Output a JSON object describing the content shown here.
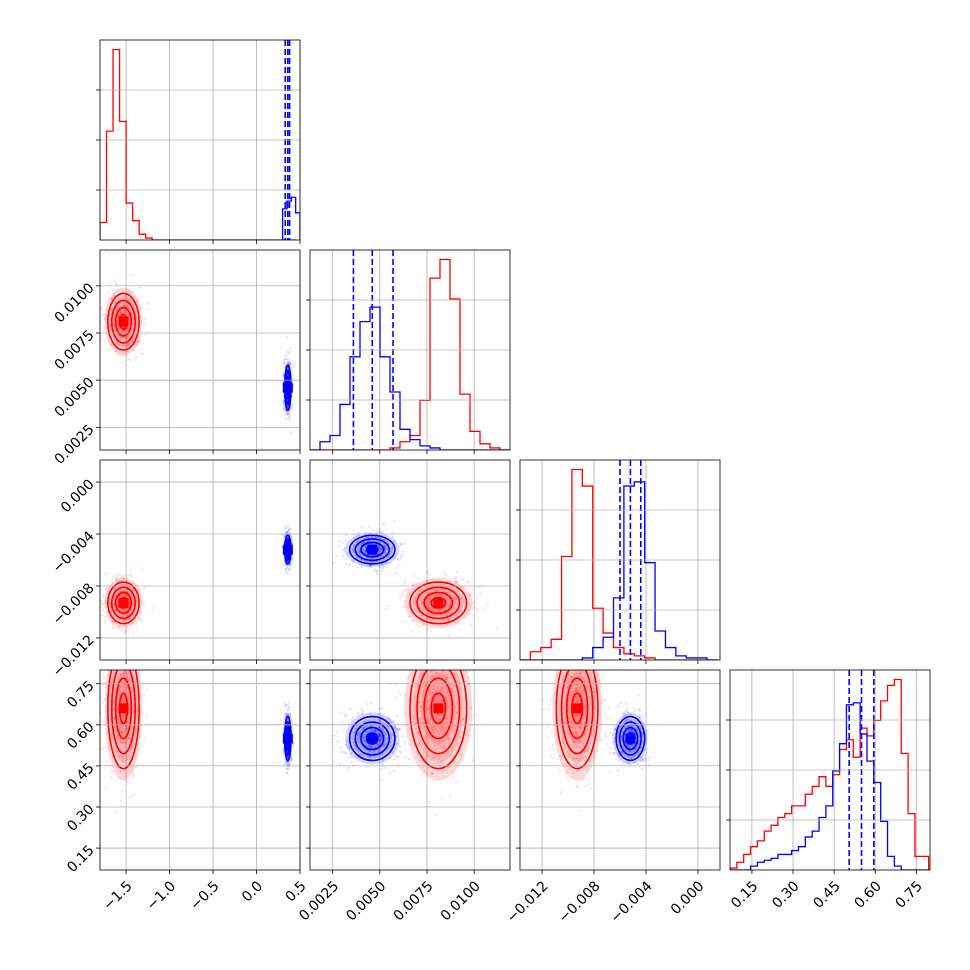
{
  "chart_data": {
    "type": "corner",
    "grid": true,
    "dims": [
      {
        "range": [
          -1.8,
          0.5
        ],
        "ticks": [
          -1.5,
          -1.0,
          -0.5,
          0.0,
          0.5
        ],
        "tick_labels": [
          "−1.5",
          "−1.0",
          "−0.5",
          "0.0",
          "0.5"
        ]
      },
      {
        "range": [
          0.0013,
          0.0119
        ],
        "ticks": [
          0.0025,
          0.005,
          0.0075,
          0.01
        ],
        "tick_labels": [
          "0.0025",
          "0.0050",
          "0.0075",
          "0.0100"
        ]
      },
      {
        "range": [
          -0.0137,
          0.0017
        ],
        "ticks": [
          -0.012,
          -0.008,
          -0.004,
          0.0
        ],
        "tick_labels": [
          "−0.012",
          "−0.008",
          "−0.004",
          "0.000"
        ]
      },
      {
        "range": [
          0.07,
          0.8
        ],
        "ticks": [
          0.15,
          0.3,
          0.45,
          0.6,
          0.75
        ],
        "tick_labels": [
          "0.15",
          "0.30",
          "0.45",
          "0.60",
          "0.75"
        ]
      }
    ],
    "series": [
      {
        "color": "#ff0000",
        "mean": [
          -1.53,
          0.0081,
          -0.0093,
          0.66
        ],
        "std": [
          0.09,
          0.00075,
          0.0008,
          0.11
        ],
        "hist": [
          {
            "bins": [
              -1.8,
              -1.725,
              -1.65,
              -1.575,
              -1.5,
              -1.425,
              -1.35,
              -1.275,
              -1.2,
              -1.125,
              -1.05,
              -0.975,
              -0.9,
              -0.825,
              -0.75,
              -0.675,
              -0.6,
              -0.525,
              -0.45,
              -0.375,
              -0.3,
              -0.225,
              -0.15,
              -0.075,
              0.0,
              0.075,
              0.15,
              0.225,
              0.3,
              0.375,
              0.45
            ],
            "counts": [
              0.09,
              0.56,
              0.98,
              0.61,
              0.19,
              0.1,
              0.03,
              0.01,
              0,
              0,
              0,
              0,
              0,
              0,
              0,
              0,
              0,
              0,
              0,
              0,
              0,
              0,
              0,
              0,
              0,
              0,
              0,
              0,
              0,
              0
            ]
          },
          {
            "bins": [
              0.0013,
              0.00183,
              0.00236,
              0.00289,
              0.00342,
              0.00395,
              0.00448,
              0.00501,
              0.00554,
              0.00607,
              0.0066,
              0.00713,
              0.00766,
              0.00819,
              0.00872,
              0.00925,
              0.00978,
              0.01031,
              0.01084,
              0.01137,
              0.0119
            ],
            "counts": [
              0,
              0,
              0,
              0,
              0,
              0,
              0,
              0,
              0.01,
              0.04,
              0.07,
              0.24,
              0.83,
              0.92,
              0.73,
              0.27,
              0.09,
              0.03,
              0.01,
              0
            ]
          },
          {
            "bins": [
              -0.0137,
              -0.0129,
              -0.0121,
              -0.0113,
              -0.0105,
              -0.0097,
              -0.0089,
              -0.0081,
              -0.0073,
              -0.0065,
              -0.0057,
              -0.0049,
              -0.0041,
              -0.0033,
              -0.0025,
              -0.0017,
              -0.0009,
              -0.0001,
              0.0007,
              0.0015
            ],
            "counts": [
              0,
              0.04,
              0.06,
              0.1,
              0.5,
              0.92,
              0.84,
              0.25,
              0.13,
              0.06,
              0.03,
              0.02,
              0.01,
              0,
              0,
              0,
              0,
              0,
              0
            ]
          },
          {
            "bins": [
              0.07,
              0.095,
              0.12,
              0.145,
              0.17,
              0.195,
              0.22,
              0.245,
              0.27,
              0.295,
              0.32,
              0.345,
              0.37,
              0.395,
              0.42,
              0.445,
              0.47,
              0.495,
              0.52,
              0.545,
              0.57,
              0.595,
              0.62,
              0.645,
              0.67,
              0.695,
              0.72,
              0.745,
              0.77,
              0.795
            ],
            "counts": [
              0.01,
              0.04,
              0.08,
              0.12,
              0.15,
              0.2,
              0.23,
              0.27,
              0.29,
              0.33,
              0.33,
              0.39,
              0.43,
              0.48,
              0.43,
              0.49,
              0.62,
              0.67,
              0.58,
              0.73,
              0.69,
              0.77,
              0.87,
              0.95,
              0.98,
              0.6,
              0.29,
              0.07,
              0.07
            ]
          }
        ]
      },
      {
        "color": "#0000ff",
        "mean": [
          0.36,
          0.0046,
          -0.0052,
          0.55
        ],
        "std": [
          0.018,
          0.0006,
          0.00055,
          0.04
        ],
        "hist": [
          {
            "bins": [
              0.3,
              0.35,
              0.4,
              0.45,
              0.5
            ],
            "counts": [
              0.16,
              0.2,
              0.22,
              0.14
            ]
          },
          {
            "bins": [
              0.0013,
              0.00183,
              0.00236,
              0.00289,
              0.00342,
              0.00395,
              0.00448,
              0.00501,
              0.00554,
              0.00607,
              0.0066,
              0.00713,
              0.00766,
              0.00819,
              0.00872,
              0.00925,
              0.00978,
              0.01031,
              0.01084,
              0.01137,
              0.0119
            ],
            "counts": [
              0,
              0.04,
              0.07,
              0.22,
              0.45,
              0.62,
              0.69,
              0.45,
              0.28,
              0.1,
              0.05,
              0.02,
              0.01,
              0,
              0,
              0,
              0,
              0,
              0,
              0
            ]
          },
          {
            "bins": [
              -0.0137,
              -0.0129,
              -0.0121,
              -0.0113,
              -0.0105,
              -0.0097,
              -0.0089,
              -0.0081,
              -0.0073,
              -0.0065,
              -0.0057,
              -0.0049,
              -0.0041,
              -0.0033,
              -0.0025,
              -0.0017,
              -0.0009,
              -0.0001,
              0.0007,
              0.0015
            ],
            "counts": [
              0,
              0,
              0,
              0,
              0,
              0,
              0.01,
              0.06,
              0.11,
              0.3,
              0.84,
              0.86,
              0.47,
              0.14,
              0.06,
              0.02,
              0.01,
              0.01,
              0
            ]
          },
          {
            "bins": [
              0.07,
              0.095,
              0.12,
              0.145,
              0.17,
              0.195,
              0.22,
              0.245,
              0.27,
              0.295,
              0.32,
              0.345,
              0.37,
              0.395,
              0.42,
              0.445,
              0.47,
              0.495,
              0.52,
              0.545,
              0.57,
              0.595,
              0.62,
              0.645,
              0.67,
              0.695,
              0.72,
              0.745,
              0.77,
              0.795
            ],
            "counts": [
              0,
              0,
              0,
              0.02,
              0.04,
              0.05,
              0.06,
              0.08,
              0.08,
              0.1,
              0.12,
              0.17,
              0.2,
              0.27,
              0.33,
              0.51,
              0.65,
              0.85,
              0.86,
              0.7,
              0.56,
              0.45,
              0.25,
              0.07,
              0.02,
              0,
              0,
              0,
              0
            ]
          }
        ]
      }
    ],
    "quantiles": [
      [
        0.33,
        0.36,
        0.38
      ],
      [
        0.0036,
        0.0046,
        0.0057
      ],
      [
        -0.006,
        -0.0052,
        -0.0044
      ],
      [
        0.505,
        0.55,
        0.595
      ]
    ],
    "quantile_color": "#0000ff"
  }
}
